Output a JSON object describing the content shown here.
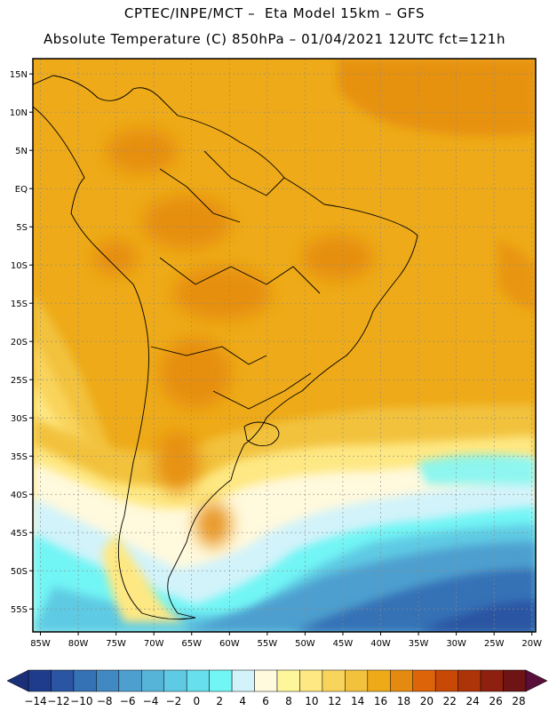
{
  "header": {
    "line1": "CPTEC/INPE/MCT –  Eta Model 15km – GFS",
    "line2": "Absolute Temperature (C) 850hPa – 01/04/2021 12UTC fct=121h"
  },
  "map": {
    "lon_range": [
      -86,
      -19.5
    ],
    "lat_range": [
      -58,
      17
    ],
    "lat_ticks": [
      {
        "value": 15,
        "label": "15N"
      },
      {
        "value": 10,
        "label": "10N"
      },
      {
        "value": 5,
        "label": "5N"
      },
      {
        "value": 0,
        "label": "EQ"
      },
      {
        "value": -5,
        "label": "5S"
      },
      {
        "value": -10,
        "label": "10S"
      },
      {
        "value": -15,
        "label": "15S"
      },
      {
        "value": -20,
        "label": "20S"
      },
      {
        "value": -25,
        "label": "25S"
      },
      {
        "value": -30,
        "label": "30S"
      },
      {
        "value": -35,
        "label": "35S"
      },
      {
        "value": -40,
        "label": "40S"
      },
      {
        "value": -45,
        "label": "45S"
      },
      {
        "value": -50,
        "label": "50S"
      },
      {
        "value": -55,
        "label": "55S"
      }
    ],
    "lon_ticks": [
      {
        "value": -85,
        "label": "85W"
      },
      {
        "value": -80,
        "label": "80W"
      },
      {
        "value": -75,
        "label": "75W"
      },
      {
        "value": -70,
        "label": "70W"
      },
      {
        "value": -65,
        "label": "65W"
      },
      {
        "value": -60,
        "label": "60W"
      },
      {
        "value": -55,
        "label": "55W"
      },
      {
        "value": -50,
        "label": "50W"
      },
      {
        "value": -45,
        "label": "45W"
      },
      {
        "value": -40,
        "label": "40W"
      },
      {
        "value": -35,
        "label": "35W"
      },
      {
        "value": -30,
        "label": "30W"
      },
      {
        "value": -25,
        "label": "25W"
      },
      {
        "value": -20,
        "label": "20W"
      }
    ]
  },
  "colorbar": {
    "colors": [
      "#1f3c8c",
      "#2a55a2",
      "#3571b5",
      "#4189c3",
      "#4d9fcf",
      "#56b4d9",
      "#5fcae3",
      "#67dfec",
      "#72f5f5",
      "#d2f3fa",
      "#fff9dd",
      "#fef69a",
      "#fee883",
      "#f9d45c",
      "#f2c23c",
      "#eeaa18",
      "#e58a10",
      "#de640a",
      "#c84806",
      "#ad3308",
      "#8e200f",
      "#6e1414"
    ],
    "labels": [
      "-14",
      "-12",
      "-10",
      "-8",
      "-6",
      "-4",
      "-2",
      "0",
      "2",
      "4",
      "6",
      "8",
      "10",
      "12",
      "14",
      "16",
      "18",
      "20",
      "22",
      "24",
      "26",
      "28"
    ]
  }
}
